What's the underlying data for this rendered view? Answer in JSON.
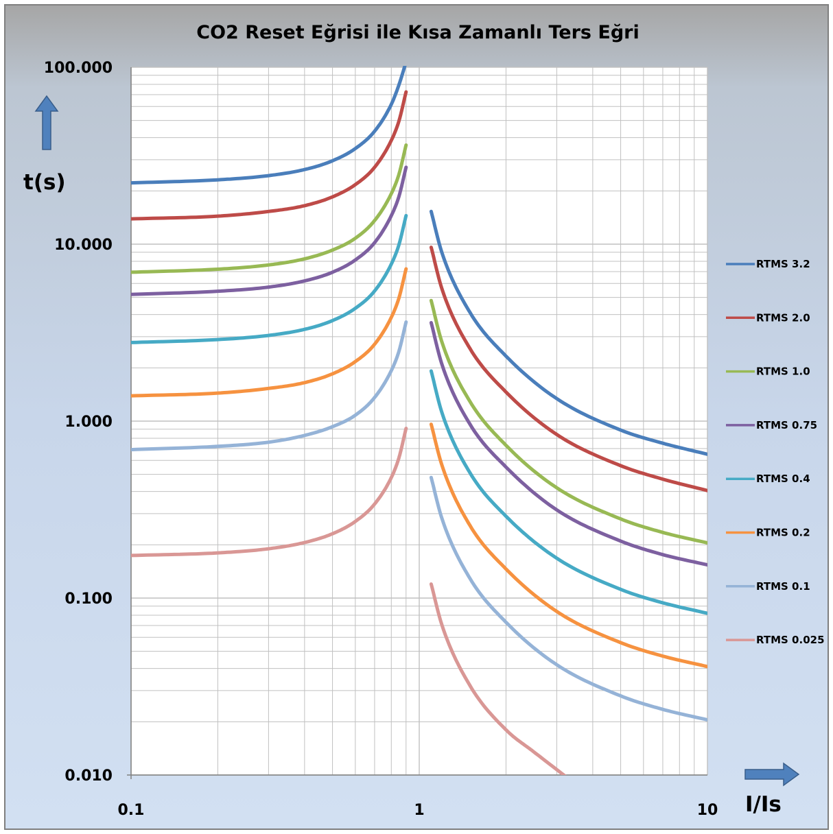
{
  "colors": {
    "background_top": "#a6a6a6",
    "background_bottom": "#d2e0f2",
    "grid": "#c0c0c0",
    "arrow": "#4f81bd"
  },
  "chart_data": {
    "type": "line",
    "title": "CO2 Reset Eğrisi ile Kısa Zamanlı Ters Eğri",
    "xlabel": "I/Is",
    "ylabel": "t(s)",
    "x_scale": "log",
    "y_scale": "log",
    "xlim": [
      0.1,
      10
    ],
    "ylim": [
      0.01,
      100
    ],
    "grid": true,
    "legend_position": "right",
    "x_ticks": [
      {
        "value": 0.1,
        "label": "0.1"
      },
      {
        "value": 1,
        "label": "1"
      },
      {
        "value": 10,
        "label": "10"
      }
    ],
    "y_ticks": [
      {
        "value": 100,
        "label": "100.000"
      },
      {
        "value": 10,
        "label": "10.000"
      },
      {
        "value": 1,
        "label": "1.000"
      },
      {
        "value": 0.1,
        "label": "0.100"
      },
      {
        "value": 0.01,
        "label": "0.010"
      }
    ],
    "series": [
      {
        "name": "RTMS 3.2",
        "color": "#4a7ebb",
        "x": [
          0.1,
          0.2,
          0.3,
          0.4,
          0.5,
          0.6,
          0.7,
          0.8,
          0.85,
          0.9,
          1.1,
          1.2,
          1.5,
          2,
          3,
          5,
          7,
          10
        ],
        "y": [
          22.2,
          23.1,
          24.4,
          26.4,
          29.6,
          34.7,
          43.5,
          61.7,
          79.4,
          107,
          15.3,
          8.9,
          4.11,
          2.33,
          1.34,
          0.89,
          0.75,
          0.65
        ]
      },
      {
        "name": "RTMS 2.0",
        "color": "#be4b48",
        "x": [
          0.1,
          0.2,
          0.3,
          0.4,
          0.5,
          0.6,
          0.7,
          0.8,
          0.85,
          0.9,
          1.1,
          1.2,
          1.5,
          2,
          3,
          5,
          7,
          10
        ],
        "y": [
          13.9,
          14.4,
          15.3,
          16.5,
          18.5,
          21.7,
          27.2,
          38.6,
          49.6,
          72.5,
          9.6,
          5.56,
          2.57,
          1.46,
          0.84,
          0.56,
          0.47,
          0.405
        ]
      },
      {
        "name": "RTMS 1.0",
        "color": "#98b954",
        "x": [
          0.1,
          0.2,
          0.3,
          0.4,
          0.5,
          0.6,
          0.7,
          0.8,
          0.85,
          0.9,
          1.1,
          1.2,
          1.5,
          2,
          3,
          5,
          7,
          10
        ],
        "y": [
          6.94,
          7.22,
          7.63,
          8.26,
          9.26,
          10.8,
          13.6,
          19.3,
          24.8,
          36.3,
          4.8,
          2.78,
          1.29,
          0.73,
          0.42,
          0.28,
          0.235,
          0.205
        ]
      },
      {
        "name": "RTMS 0.75",
        "color": "#7d60a0",
        "x": [
          0.1,
          0.2,
          0.3,
          0.4,
          0.5,
          0.6,
          0.7,
          0.8,
          0.85,
          0.9,
          1.1,
          1.2,
          1.5,
          2,
          3,
          5,
          7,
          10
        ],
        "y": [
          5.2,
          5.42,
          5.72,
          6.2,
          6.94,
          8.14,
          10.2,
          14.5,
          18.6,
          27.2,
          3.6,
          2.08,
          0.96,
          0.55,
          0.315,
          0.21,
          0.176,
          0.154
        ]
      },
      {
        "name": "RTMS 0.4",
        "color": "#46aac5",
        "x": [
          0.1,
          0.2,
          0.3,
          0.4,
          0.5,
          0.6,
          0.7,
          0.8,
          0.85,
          0.9,
          1.1,
          1.2,
          1.5,
          2,
          3,
          5,
          7,
          10
        ],
        "y": [
          2.78,
          2.89,
          3.05,
          3.3,
          3.7,
          4.34,
          5.44,
          7.72,
          9.92,
          14.5,
          1.92,
          1.11,
          0.51,
          0.29,
          0.168,
          0.112,
          0.094,
          0.082
        ]
      },
      {
        "name": "RTMS 0.2",
        "color": "#f69240",
        "x": [
          0.1,
          0.2,
          0.3,
          0.4,
          0.5,
          0.6,
          0.7,
          0.8,
          0.85,
          0.9,
          1.1,
          1.2,
          1.5,
          2,
          3,
          5,
          7,
          10
        ],
        "y": [
          1.39,
          1.44,
          1.53,
          1.65,
          1.85,
          2.17,
          2.72,
          3.86,
          4.96,
          7.25,
          0.96,
          0.56,
          0.257,
          0.146,
          0.084,
          0.056,
          0.047,
          0.041
        ]
      },
      {
        "name": "RTMS 0.1",
        "color": "#95b3d7",
        "x": [
          0.1,
          0.2,
          0.3,
          0.4,
          0.5,
          0.6,
          0.7,
          0.8,
          0.85,
          0.9,
          1.1,
          1.2,
          1.5,
          2,
          3,
          5,
          7,
          10
        ],
        "y": [
          0.69,
          0.72,
          0.76,
          0.83,
          0.93,
          1.08,
          1.36,
          1.93,
          2.48,
          3.63,
          0.48,
          0.28,
          0.129,
          0.073,
          0.042,
          0.028,
          0.0235,
          0.0205
        ]
      },
      {
        "name": "RTMS 0.025",
        "color": "#d99795",
        "x": [
          0.1,
          0.2,
          0.3,
          0.4,
          0.5,
          0.6,
          0.7,
          0.8,
          0.85,
          0.9,
          1.1,
          1.2,
          1.5,
          2,
          2.5,
          3.2
        ],
        "y": [
          0.174,
          0.18,
          0.19,
          0.206,
          0.231,
          0.271,
          0.34,
          0.48,
          0.62,
          0.91,
          0.12,
          0.07,
          0.032,
          0.018,
          0.0135,
          0.0099
        ]
      }
    ]
  }
}
